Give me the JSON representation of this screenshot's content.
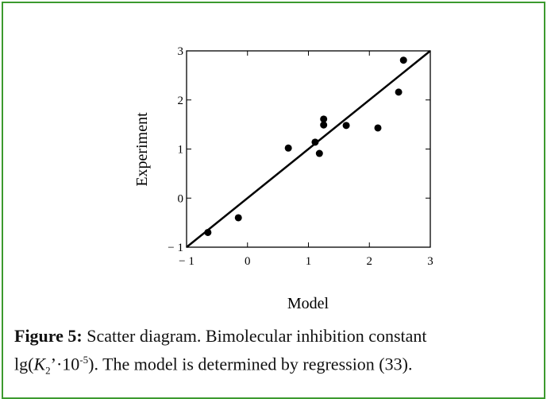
{
  "chart_data": {
    "type": "scatter",
    "xlabel": "Model",
    "ylabel": "Experiment",
    "x": [
      -0.65,
      -0.15,
      0.67,
      1.11,
      1.18,
      1.25,
      1.25,
      1.62,
      2.14,
      2.48,
      2.56
    ],
    "y": [
      -0.7,
      -0.4,
      1.02,
      1.14,
      0.91,
      1.61,
      1.49,
      1.48,
      1.43,
      2.16,
      2.81
    ],
    "color": "#000000",
    "fit_line": {
      "x": [
        -1,
        3
      ],
      "y": [
        -1,
        3
      ],
      "color": "#000000"
    },
    "xlim": [
      -1,
      3
    ],
    "ylim": [
      -1,
      3
    ],
    "xticks": [
      {
        "value": -1,
        "label": "− 1"
      },
      0,
      1,
      2,
      3
    ],
    "yticks": [
      {
        "value": -1,
        "label": "− 1"
      },
      0,
      1,
      2,
      3
    ],
    "grid": false
  },
  "caption": {
    "label": "Figure 5:",
    "text1": "Scatter diagram. Bimolecular inhibition constant",
    "text2": "lg(",
    "var": "K",
    "sub": "2",
    "text3": "’·10",
    "sup": "-5",
    "text4": "). The model is determined by regression (33)."
  }
}
